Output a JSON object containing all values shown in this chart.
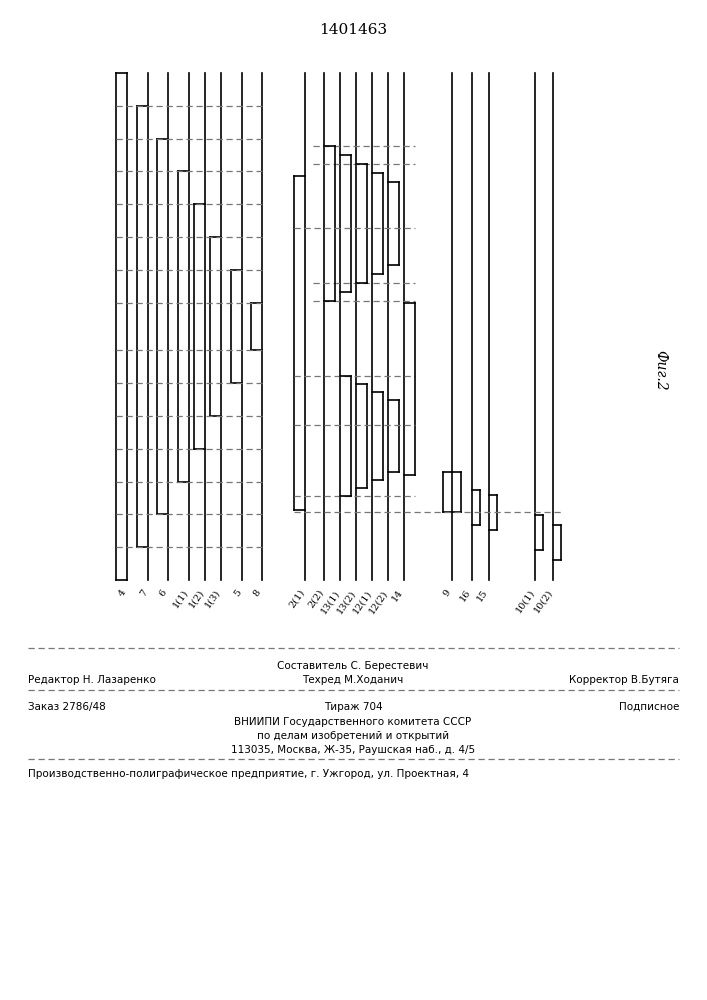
{
  "title": "1401463",
  "fig_label": "Фиг.2",
  "bg": "#ffffff",
  "lc": "#000000",
  "dc": "#777777",
  "signal_labels": [
    "4",
    "7",
    "6",
    "1(1)",
    "1(2)",
    "1(3)",
    "5",
    "8",
    "2(1)",
    "2(2)",
    "13(1)",
    "13(2)",
    "12(1)",
    "12(2)",
    "14",
    "9",
    "16",
    "15",
    "10(1)",
    "10(2)"
  ],
  "footer_editor": "Редактор Н. Лазаренко",
  "footer_tehred": "Техред М.Ходанич",
  "footer_corrector": "Корректор В.Бутяга",
  "footer_sostavitel": "Составитель С. Берестевич",
  "footer_zakaz": "Заказ 2786/48",
  "footer_tirazh": "Тираж 704",
  "footer_podpisnoe": "Подписное",
  "footer_vniipи": "ВНИИПИ Государственного комитета СССР",
  "footer_po": "по делам изобретений и открытий",
  "footer_addr": "113035, Москва, Ж-35, Раушская наб., д. 4/5",
  "footer_prod": "Производственно-полиграфическое предприятие, г. Ужгород, ул. Проектная, 4"
}
